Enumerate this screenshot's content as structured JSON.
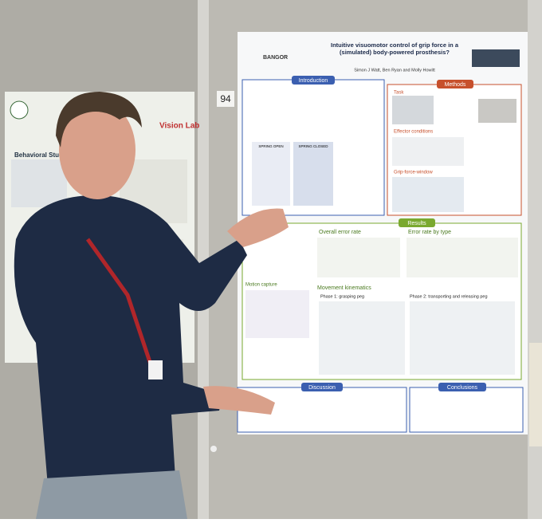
{
  "board_number": "94",
  "left_poster": {
    "lab": "Vision Lab",
    "section": "Behavioral Study"
  },
  "poster": {
    "institution": "BANGOR",
    "title": "Intuitive visuomotor control of grip force in a (simulated) body-powered prosthesis?",
    "authors": "Simon J Watt, Ben Ryan and Molly Howitt",
    "sections": {
      "introduction": "Introduction",
      "methods": "Methods",
      "task": "Task",
      "effector_conditions": "Effector conditions",
      "grip_force_window": "Grip-force-window",
      "results": "Results",
      "overall_error_rate": "Overall error rate",
      "error_rate_by_type": "Error rate by type",
      "motion_capture": "Motion capture",
      "movement_kinematics": "Movement kinematics",
      "phase1": "Phase 1: grasping peg",
      "phase2": "Phase 2: transporting and releasing peg",
      "discussion": "Discussion",
      "conclusions": "Conclusions"
    },
    "intro_labels": {
      "spring_open": "SPRING OPEN",
      "spring_closed": "SPRING CLOSED"
    }
  }
}
